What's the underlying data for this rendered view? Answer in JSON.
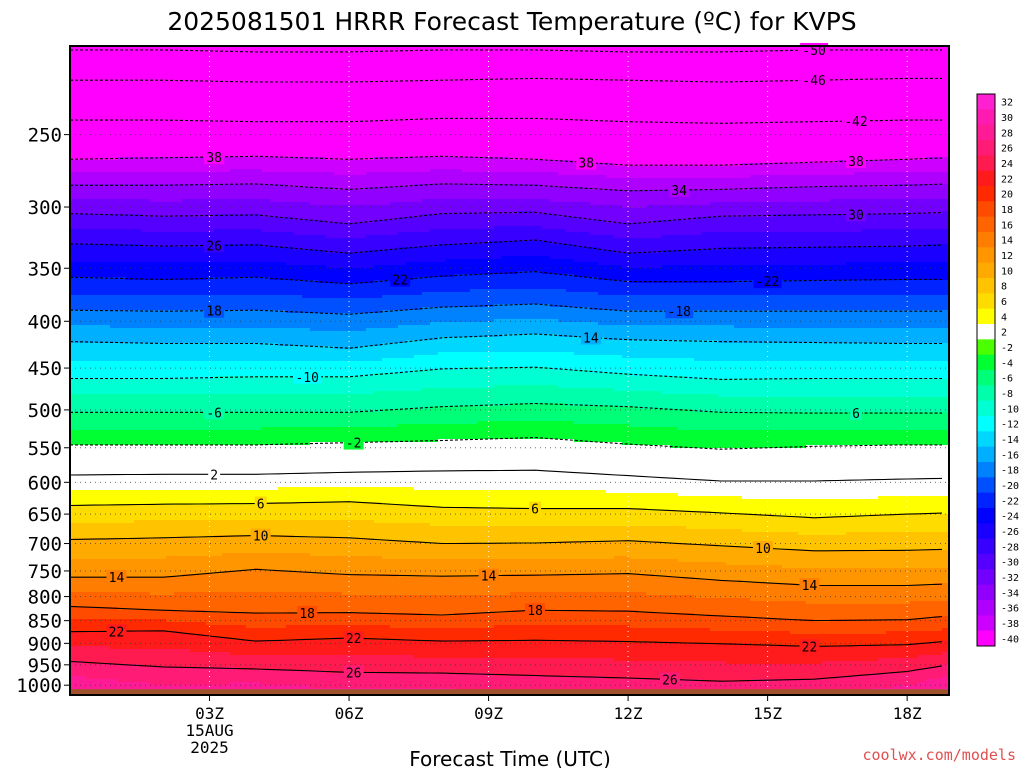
{
  "chart_data": {
    "type": "heatmap",
    "title": "2025081501 HRRR Forecast Temperature (ºC) for KVPS",
    "xlabel": "Forecast Time (UTC)",
    "ylabel": "",
    "credit": "coolwx.com/models",
    "x_range_hours": [
      0,
      18.9
    ],
    "y_range_hpa": [
      200,
      1025
    ],
    "y_scale": "log",
    "grid": "dotted",
    "x_ticks": [
      {
        "hour": 3,
        "lines": [
          "03Z",
          "15AUG",
          "2025"
        ]
      },
      {
        "hour": 6,
        "lines": [
          "06Z"
        ]
      },
      {
        "hour": 9,
        "lines": [
          "09Z"
        ]
      },
      {
        "hour": 12,
        "lines": [
          "12Z"
        ]
      },
      {
        "hour": 15,
        "lines": [
          "15Z"
        ]
      },
      {
        "hour": 18,
        "lines": [
          "18Z"
        ]
      }
    ],
    "y_ticks": [
      250,
      300,
      350,
      400,
      450,
      500,
      550,
      600,
      650,
      700,
      750,
      800,
      850,
      900,
      950,
      1000
    ],
    "hours": [
      0,
      2,
      4,
      6,
      8,
      10,
      12,
      14,
      16,
      18,
      18.9
    ],
    "temperature_levels": [
      {
        "temp": -50,
        "p": [
          202,
          202,
          203,
          203,
          202,
          202,
          203,
          203,
          202,
          202,
          202
        ]
      },
      {
        "temp": -46,
        "p": [
          218,
          218,
          219,
          219,
          218,
          217,
          218,
          219,
          218,
          217,
          217
        ]
      },
      {
        "temp": -42,
        "p": [
          241,
          241,
          242,
          242,
          240,
          240,
          242,
          243,
          242,
          241,
          241
        ]
      },
      {
        "temp": -38,
        "p": [
          266,
          265,
          264,
          266,
          264,
          266,
          270,
          270,
          268,
          266,
          265
        ]
      },
      {
        "temp": -34,
        "p": [
          284,
          284,
          283,
          287,
          283,
          284,
          288,
          287,
          285,
          284,
          283
        ]
      },
      {
        "temp": -30,
        "p": [
          305,
          307,
          306,
          313,
          305,
          304,
          313,
          307,
          306,
          305,
          304
        ]
      },
      {
        "temp": -26,
        "p": [
          329,
          331,
          330,
          337,
          330,
          326,
          337,
          333,
          332,
          331,
          330
        ]
      },
      {
        "temp": -22,
        "p": [
          358,
          360,
          358,
          364,
          357,
          353,
          362,
          362,
          361,
          360,
          360
        ]
      },
      {
        "temp": -18,
        "p": [
          389,
          390,
          389,
          393,
          386,
          383,
          390,
          390,
          390,
          390,
          390
        ]
      },
      {
        "temp": -14,
        "p": [
          421,
          423,
          423,
          428,
          417,
          413,
          419,
          421,
          422,
          423,
          423
        ]
      },
      {
        "temp": -10,
        "p": [
          462,
          462,
          460,
          460,
          451,
          449,
          457,
          463,
          462,
          462,
          462
        ]
      },
      {
        "temp": -6,
        "p": [
          503,
          503,
          503,
          503,
          496,
          492,
          496,
          503,
          504,
          504,
          504
        ]
      },
      {
        "temp": -2,
        "p": [
          546,
          546,
          546,
          543,
          540,
          536,
          545,
          552,
          548,
          546,
          546
        ]
      },
      {
        "temp": 2,
        "p": [
          589,
          588,
          588,
          585,
          583,
          582,
          590,
          598,
          598,
          595,
          594
        ]
      },
      {
        "temp": 6,
        "p": [
          636,
          634,
          633,
          630,
          639,
          641,
          641,
          648,
          656,
          650,
          648
        ]
      },
      {
        "temp": 10,
        "p": [
          693,
          690,
          686,
          690,
          700,
          699,
          695,
          704,
          713,
          712,
          710
        ]
      },
      {
        "temp": 14,
        "p": [
          762,
          762,
          747,
          757,
          760,
          758,
          755,
          768,
          778,
          778,
          775
        ]
      },
      {
        "temp": 18,
        "p": [
          820,
          828,
          834,
          833,
          838,
          828,
          830,
          840,
          850,
          848,
          840
        ]
      },
      {
        "temp": 22,
        "p": [
          874,
          872,
          895,
          888,
          895,
          893,
          896,
          901,
          907,
          903,
          895
        ]
      },
      {
        "temp": 26,
        "p": [
          942,
          955,
          960,
          968,
          970,
          976,
          982,
          990,
          985,
          966,
          950
        ]
      }
    ],
    "contour_labels": [
      {
        "temp": -50,
        "text": "-50",
        "hour": 16.0
      },
      {
        "temp": -46,
        "text": "-46",
        "hour": 16.0
      },
      {
        "temp": -42,
        "text": "-42",
        "hour": 16.9
      },
      {
        "temp": -38,
        "text": "38",
        "hour": 3.1
      },
      {
        "temp": -38,
        "text": "38",
        "hour": 11.1
      },
      {
        "temp": -38,
        "text": "38",
        "hour": 16.9
      },
      {
        "temp": -34,
        "text": "34",
        "hour": 13.1
      },
      {
        "temp": -30,
        "text": "30",
        "hour": 16.9
      },
      {
        "temp": -26,
        "text": "26",
        "hour": 3.1
      },
      {
        "temp": -22,
        "text": "22",
        "hour": 7.1
      },
      {
        "temp": -22,
        "text": "-22",
        "hour": 15.0
      },
      {
        "temp": -18,
        "text": "18",
        "hour": 3.1
      },
      {
        "temp": -18,
        "text": "-18",
        "hour": 13.1
      },
      {
        "temp": -14,
        "text": "14",
        "hour": 11.2
      },
      {
        "temp": -10,
        "text": "-10",
        "hour": 5.1
      },
      {
        "temp": -6,
        "text": "-6",
        "hour": 3.1
      },
      {
        "temp": -6,
        "text": "6",
        "hour": 16.9
      },
      {
        "temp": -2,
        "text": "-2",
        "hour": 6.1
      },
      {
        "temp": 2,
        "text": "2",
        "hour": 3.1
      },
      {
        "temp": 6,
        "text": "6",
        "hour": 4.1
      },
      {
        "temp": 6,
        "text": "6",
        "hour": 10.0
      },
      {
        "temp": 10,
        "text": "10",
        "hour": 4.1
      },
      {
        "temp": 10,
        "text": "10",
        "hour": 14.9
      },
      {
        "temp": 14,
        "text": "14",
        "hour": 1.0
      },
      {
        "temp": 14,
        "text": "14",
        "hour": 9.0
      },
      {
        "temp": 14,
        "text": "14",
        "hour": 15.9
      },
      {
        "temp": 18,
        "text": "18",
        "hour": 5.1
      },
      {
        "temp": 18,
        "text": "18",
        "hour": 10.0
      },
      {
        "temp": 22,
        "text": "22",
        "hour": 1.0
      },
      {
        "temp": 22,
        "text": "22",
        "hour": 6.1
      },
      {
        "temp": 22,
        "text": "22",
        "hour": 15.9
      },
      {
        "temp": 26,
        "text": "26",
        "hour": 6.1
      },
      {
        "temp": 26,
        "text": "26",
        "hour": 12.9
      }
    ],
    "surface_pressure_hpa": 1010,
    "surface_color": "#a0522d",
    "colorbar": [
      {
        "label": "32",
        "color": "#ff20d2"
      },
      {
        "label": "30",
        "color": "#ff1bb2"
      },
      {
        "label": "28",
        "color": "#ff1b96"
      },
      {
        "label": "26",
        "color": "#ff1b76"
      },
      {
        "label": "24",
        "color": "#ff1b50"
      },
      {
        "label": "22",
        "color": "#ff1b1b"
      },
      {
        "label": "20",
        "color": "#ff2a00"
      },
      {
        "label": "18",
        "color": "#ff4b00"
      },
      {
        "label": "16",
        "color": "#ff6400"
      },
      {
        "label": "14",
        "color": "#ff7d00"
      },
      {
        "label": "12",
        "color": "#ff9600"
      },
      {
        "label": "10",
        "color": "#ffaa00"
      },
      {
        "label": "8",
        "color": "#ffc300"
      },
      {
        "label": "6",
        "color": "#ffdc00"
      },
      {
        "label": "4",
        "color": "#ffff00"
      },
      {
        "label": "2",
        "color": "#ffffff"
      },
      {
        "label": "-2",
        "color": "#4bff00"
      },
      {
        "label": "-4",
        "color": "#00ff32"
      },
      {
        "label": "-6",
        "color": "#00ff78"
      },
      {
        "label": "-8",
        "color": "#00ffaa"
      },
      {
        "label": "-10",
        "color": "#00ffd2"
      },
      {
        "label": "-12",
        "color": "#00ffff"
      },
      {
        "label": "-14",
        "color": "#00d7ff"
      },
      {
        "label": "-16",
        "color": "#00afff"
      },
      {
        "label": "-18",
        "color": "#0082ff"
      },
      {
        "label": "-20",
        "color": "#0050ff"
      },
      {
        "label": "-22",
        "color": "#0023ff"
      },
      {
        "label": "-24",
        "color": "#0000ff"
      },
      {
        "label": "-26",
        "color": "#1900ff"
      },
      {
        "label": "-28",
        "color": "#3700ff"
      },
      {
        "label": "-30",
        "color": "#5500ff"
      },
      {
        "label": "-32",
        "color": "#7300ff"
      },
      {
        "label": "-34",
        "color": "#9100ff"
      },
      {
        "label": "-36",
        "color": "#af00ff"
      },
      {
        "label": "-38",
        "color": "#cd00ff"
      },
      {
        "label": "-40",
        "color": "#ff00ff"
      }
    ]
  }
}
